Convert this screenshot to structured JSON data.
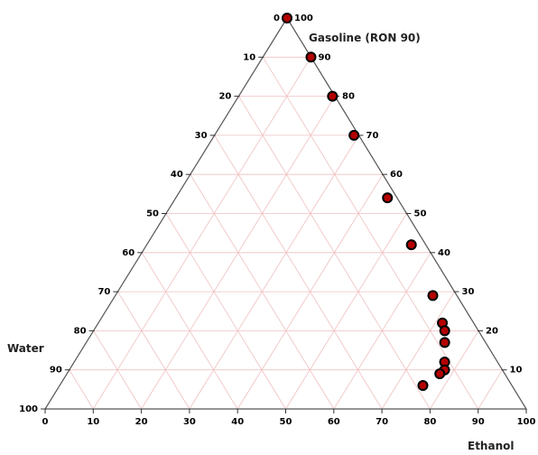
{
  "chart_data": {
    "type": "ternary-scatter",
    "vertices": {
      "top": "Gasoline  (RON 90)",
      "left": "Water",
      "right": "Ethanol"
    },
    "colors": {
      "grid": "#efc0c0",
      "frame": "#555555",
      "marker_fill": "#b30000",
      "marker_stroke": "#000000"
    },
    "left_axis_ticks": [
      "0",
      "10",
      "20",
      "30",
      "40",
      "50",
      "60",
      "70",
      "80",
      "90",
      "100"
    ],
    "right_axis_ticks": [
      "100",
      "90",
      "80",
      "70",
      "60",
      "50",
      "40",
      "30",
      "20",
      "10"
    ],
    "bottom_axis_ticks": [
      "0",
      "10",
      "20",
      "30",
      "40",
      "50",
      "60",
      "70",
      "80",
      "90",
      "100"
    ],
    "points": [
      {
        "gasoline": 100,
        "ethanol": 0,
        "water": 0
      },
      {
        "gasoline": 90,
        "ethanol": 10,
        "water": 0
      },
      {
        "gasoline": 80,
        "ethanol": 19.5,
        "water": 0.5
      },
      {
        "gasoline": 70,
        "ethanol": 29,
        "water": 1
      },
      {
        "gasoline": 54,
        "ethanol": 44,
        "water": 2
      },
      {
        "gasoline": 42,
        "ethanol": 55,
        "water": 3
      },
      {
        "gasoline": 29,
        "ethanol": 66,
        "water": 5
      },
      {
        "gasoline": 22,
        "ethanol": 71.5,
        "water": 6.5
      },
      {
        "gasoline": 20,
        "ethanol": 73,
        "water": 7
      },
      {
        "gasoline": 17,
        "ethanol": 74.5,
        "water": 8.5
      },
      {
        "gasoline": 12,
        "ethanol": 77,
        "water": 11
      },
      {
        "gasoline": 10,
        "ethanol": 78,
        "water": 12
      },
      {
        "gasoline": 9,
        "ethanol": 77.5,
        "water": 13.5
      },
      {
        "gasoline": 6,
        "ethanol": 75.5,
        "water": 18.5
      }
    ]
  }
}
